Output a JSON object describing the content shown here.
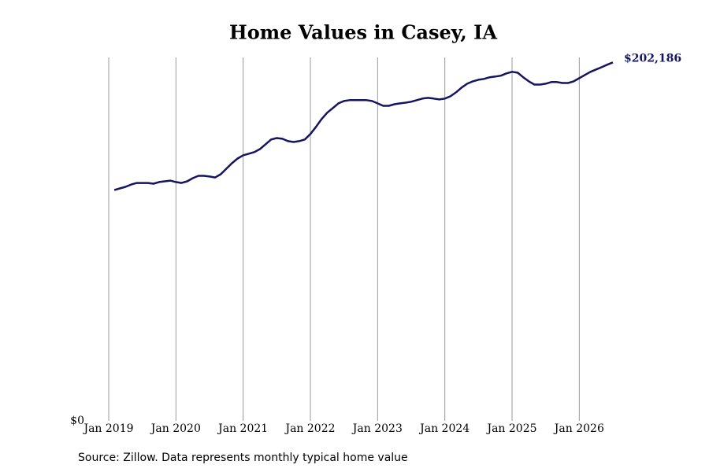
{
  "chart_data": {
    "type": "line",
    "title": "Home Values in Casey, IA",
    "source": "Source: Zillow. Data represents monthly typical home value",
    "x": [
      "2019-02",
      "2019-03",
      "2019-04",
      "2019-05",
      "2019-06",
      "2019-07",
      "2019-08",
      "2019-09",
      "2019-10",
      "2019-11",
      "2019-12",
      "2020-01",
      "2020-02",
      "2020-03",
      "2020-04",
      "2020-05",
      "2020-06",
      "2020-07",
      "2020-08",
      "2020-09",
      "2020-10",
      "2020-11",
      "2020-12",
      "2021-01",
      "2021-02",
      "2021-03",
      "2021-04",
      "2021-05",
      "2021-06",
      "2021-07",
      "2021-08",
      "2021-09",
      "2021-10",
      "2021-11",
      "2021-12",
      "2022-01",
      "2022-02",
      "2022-03",
      "2022-04",
      "2022-05",
      "2022-06",
      "2022-07",
      "2022-08",
      "2022-09",
      "2022-10",
      "2022-11",
      "2022-12",
      "2023-01",
      "2023-02",
      "2023-03",
      "2023-04",
      "2023-05",
      "2023-06",
      "2023-07",
      "2023-08",
      "2023-09",
      "2023-10",
      "2023-11",
      "2023-12",
      "2024-01",
      "2024-02",
      "2024-03",
      "2024-04",
      "2024-05",
      "2024-06",
      "2024-07",
      "2024-08",
      "2024-09",
      "2024-10",
      "2024-11",
      "2024-12",
      "2025-01",
      "2025-02",
      "2025-03",
      "2025-04",
      "2025-05",
      "2025-06",
      "2025-07",
      "2025-08",
      "2025-09",
      "2025-10",
      "2025-11",
      "2025-12",
      "2026-01",
      "2026-02",
      "2026-03",
      "2026-04",
      "2026-05",
      "2026-06",
      "2026-07"
    ],
    "series": [
      {
        "color": "#14145f",
        "values": [
          130200,
          131100,
          132000,
          133300,
          134200,
          134200,
          134200,
          133800,
          134700,
          135100,
          135500,
          134700,
          134200,
          135100,
          136900,
          138200,
          138200,
          137800,
          137300,
          139100,
          142200,
          145300,
          148000,
          149800,
          150700,
          151600,
          153300,
          156000,
          158700,
          159500,
          159100,
          157800,
          157300,
          157800,
          158700,
          161800,
          165800,
          170200,
          173800,
          176400,
          179100,
          180400,
          180900,
          180900,
          180900,
          180900,
          180400,
          179100,
          177700,
          177700,
          178600,
          179100,
          179500,
          180000,
          180900,
          181800,
          182200,
          181800,
          181300,
          181800,
          183100,
          185300,
          188000,
          190200,
          191500,
          192400,
          192900,
          193800,
          194200,
          194700,
          196000,
          196900,
          196400,
          193800,
          191500,
          189700,
          189700,
          190200,
          191100,
          191100,
          190600,
          190600,
          191500,
          193300,
          195100,
          196900,
          198200,
          199500,
          200900,
          202186
        ],
        "value_labels": [
          null,
          null,
          null,
          null,
          null,
          null,
          null,
          null,
          null,
          null,
          null,
          null,
          null,
          null,
          null,
          null,
          null,
          null,
          null,
          null,
          null,
          null,
          null,
          null,
          null,
          null,
          null,
          null,
          null,
          null,
          null,
          null,
          null,
          null,
          null,
          null,
          null,
          null,
          null,
          null,
          null,
          null,
          null,
          null,
          null,
          null,
          null,
          null,
          null,
          null,
          null,
          null,
          null,
          null,
          null,
          null,
          null,
          null,
          null,
          null,
          null,
          null,
          null,
          null,
          null,
          null,
          null,
          null,
          null,
          null,
          null,
          null,
          null,
          null,
          null,
          null,
          null,
          null,
          null,
          null,
          null,
          null,
          null,
          null,
          null,
          null,
          null,
          null,
          null,
          "$202,186"
        ]
      }
    ],
    "xlim": [
      "2019-01",
      "2026-07"
    ],
    "xticks": [
      {
        "value": "2019-01",
        "label": "Jan 2019"
      },
      {
        "value": "2020-01",
        "label": "Jan 2020"
      },
      {
        "value": "2021-01",
        "label": "Jan 2021"
      },
      {
        "value": "2022-01",
        "label": "Jan 2022"
      },
      {
        "value": "2023-01",
        "label": "Jan 2023"
      },
      {
        "value": "2024-01",
        "label": "Jan 2024"
      },
      {
        "value": "2025-01",
        "label": "Jan 2025"
      },
      {
        "value": "2026-01",
        "label": "Jan 2026"
      }
    ],
    "ylim": [
      0,
      205000
    ],
    "yticks": [
      {
        "value": 0,
        "label": "$0"
      }
    ],
    "grid": true
  }
}
